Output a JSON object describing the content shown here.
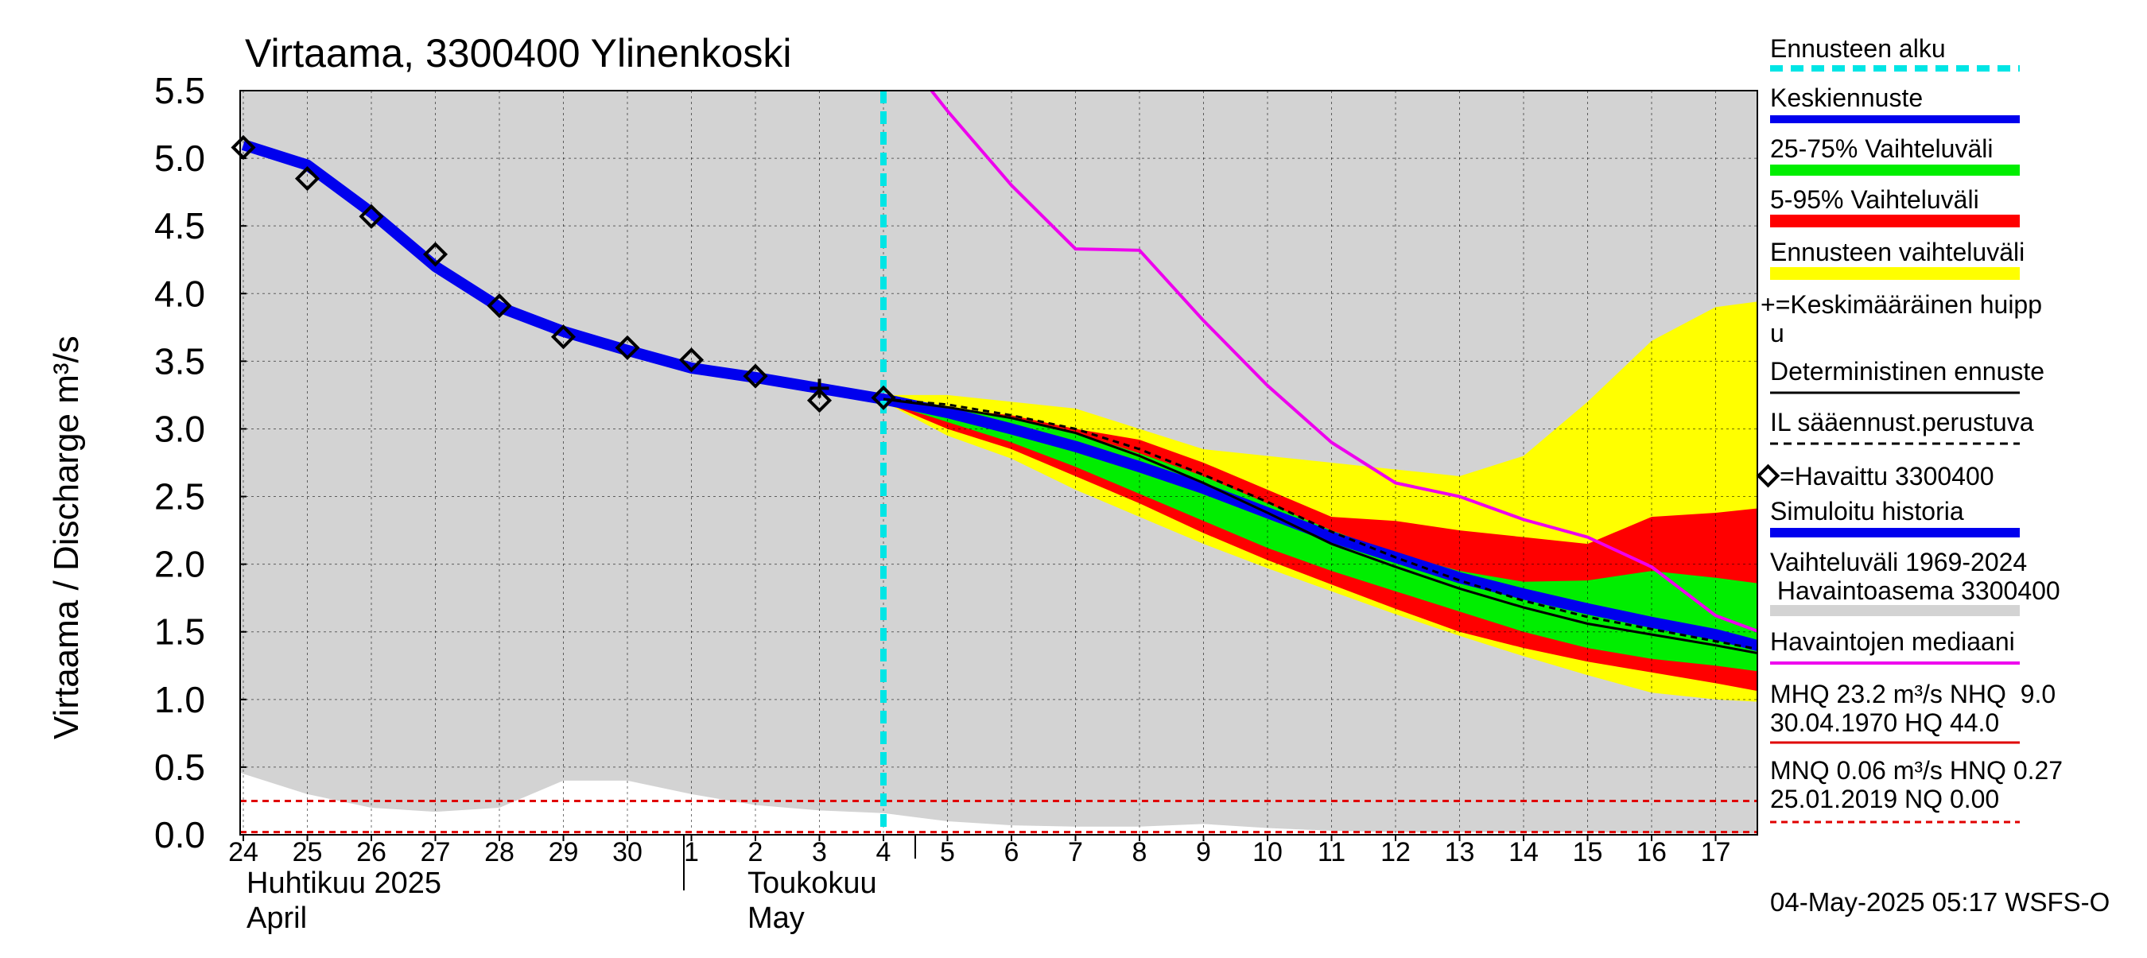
{
  "chart_data": {
    "type": "area",
    "title": "Virtaama, 3300400 Ylinenkoski",
    "ylabel": "Virtaama / Discharge    m³/s",
    "ylim": [
      0,
      5.5
    ],
    "yticks": [
      "0.0",
      "0.5",
      "1.0",
      "1.5",
      "2.0",
      "2.5",
      "3.0",
      "3.5",
      "4.0",
      "4.5",
      "5.0",
      "5.5"
    ],
    "days": [
      "24",
      "25",
      "26",
      "27",
      "28",
      "29",
      "30",
      "1",
      "2",
      "3",
      "4",
      "5",
      "6",
      "7",
      "8",
      "9",
      "10",
      "11",
      "12",
      "13",
      "14",
      "15",
      "16",
      "17"
    ],
    "month1_fi": "Huhtikuu  2025",
    "month1_en": "April",
    "month2_fi": "Toukokuu",
    "month2_en": "May",
    "forecast_start_day": 10,
    "x_range": [
      -0.2,
      23.8
    ],
    "history_band_upper": [
      [
        -0.2,
        5.5
      ],
      [
        23.8,
        5.5
      ]
    ],
    "history_band_lower": [
      [
        -0.2,
        0.5
      ],
      [
        0,
        0.45
      ],
      [
        1,
        0.3
      ],
      [
        2,
        0.2
      ],
      [
        3,
        0.17
      ],
      [
        4,
        0.2
      ],
      [
        5,
        0.4
      ],
      [
        6,
        0.4
      ],
      [
        7,
        0.3
      ],
      [
        8,
        0.22
      ],
      [
        9,
        0.18
      ],
      [
        10,
        0.16
      ],
      [
        11,
        0.1
      ],
      [
        12,
        0.07
      ],
      [
        13,
        0.06
      ],
      [
        14,
        0.06
      ],
      [
        15,
        0.08
      ],
      [
        16,
        0.05
      ],
      [
        17,
        0.03
      ],
      [
        18,
        0.02
      ],
      [
        19,
        0.02
      ],
      [
        20,
        0.02
      ],
      [
        21,
        0.02
      ],
      [
        22,
        0.01
      ],
      [
        23,
        0.01
      ],
      [
        23.8,
        0.01
      ]
    ],
    "ensemble_range": {
      "x": [
        10,
        11,
        12,
        13,
        14,
        15,
        16,
        17,
        18,
        19,
        20,
        21,
        22,
        23,
        23.8
      ],
      "upper": [
        3.25,
        3.25,
        3.2,
        3.15,
        3.0,
        2.85,
        2.8,
        2.75,
        2.7,
        2.65,
        2.8,
        3.2,
        3.65,
        3.9,
        3.95
      ],
      "lower": [
        3.2,
        2.95,
        2.78,
        2.55,
        2.35,
        2.15,
        1.97,
        1.8,
        1.63,
        1.47,
        1.32,
        1.18,
        1.05,
        1.0,
        0.98
      ]
    },
    "band_5_95": {
      "x": [
        10,
        11,
        12,
        13,
        14,
        15,
        16,
        17,
        18,
        19,
        20,
        21,
        22,
        23,
        23.8
      ],
      "upper": [
        3.22,
        3.15,
        3.1,
        3.0,
        2.92,
        2.75,
        2.55,
        2.35,
        2.32,
        2.25,
        2.2,
        2.15,
        2.35,
        2.38,
        2.42
      ],
      "lower": [
        3.2,
        3.0,
        2.85,
        2.65,
        2.45,
        2.23,
        2.03,
        1.85,
        1.67,
        1.5,
        1.38,
        1.28,
        1.2,
        1.12,
        1.05
      ]
    },
    "band_25_75": {
      "x": [
        10,
        11,
        12,
        13,
        14,
        15,
        16,
        17,
        18,
        19,
        20,
        21,
        22,
        23,
        23.8
      ],
      "upper": [
        3.22,
        3.15,
        3.08,
        2.97,
        2.82,
        2.65,
        2.45,
        2.25,
        2.08,
        1.95,
        1.87,
        1.88,
        1.95,
        1.9,
        1.85
      ],
      "lower": [
        3.2,
        3.05,
        2.9,
        2.72,
        2.52,
        2.32,
        2.12,
        1.95,
        1.8,
        1.65,
        1.5,
        1.38,
        1.3,
        1.25,
        1.2
      ]
    },
    "simulated_history": {
      "x": [
        0,
        1,
        2,
        3,
        4,
        5,
        6,
        7,
        8,
        9,
        10,
        11,
        12,
        13,
        14,
        15,
        16,
        17,
        18,
        19,
        20,
        21,
        22,
        23,
        23.8
      ],
      "y": [
        5.1,
        4.95,
        4.6,
        4.2,
        3.9,
        3.72,
        3.58,
        3.45,
        3.38,
        3.3,
        3.22,
        3.12,
        3.0,
        2.87,
        2.72,
        2.56,
        2.38,
        2.2,
        2.05,
        1.9,
        1.78,
        1.67,
        1.57,
        1.48,
        1.38
      ]
    },
    "mean_forecast": {
      "x": [
        10,
        11,
        12,
        13,
        14,
        15,
        16,
        17,
        18,
        19,
        20,
        21,
        22,
        23,
        23.8
      ],
      "y": [
        3.22,
        3.12,
        3.0,
        2.87,
        2.72,
        2.56,
        2.38,
        2.2,
        2.05,
        1.9,
        1.78,
        1.67,
        1.57,
        1.48,
        1.38
      ]
    },
    "deterministic": {
      "x": [
        10,
        11,
        12,
        13,
        14,
        15,
        16,
        17,
        18,
        19,
        20,
        21,
        22,
        23,
        23.8
      ],
      "y": [
        3.22,
        3.16,
        3.08,
        2.97,
        2.8,
        2.6,
        2.38,
        2.15,
        1.98,
        1.82,
        1.68,
        1.56,
        1.48,
        1.4,
        1.33
      ]
    },
    "il_forecast": {
      "x": [
        10,
        11,
        12,
        13,
        14,
        15,
        16,
        17,
        18,
        19,
        20,
        21,
        22,
        23,
        23.8
      ],
      "y": [
        3.22,
        3.18,
        3.1,
        3.0,
        2.85,
        2.66,
        2.46,
        2.24,
        2.05,
        1.88,
        1.73,
        1.61,
        1.52,
        1.43,
        1.36
      ]
    },
    "observed": {
      "x": [
        0,
        1,
        2,
        3,
        4,
        5,
        6,
        7,
        8,
        9,
        10
      ],
      "y": [
        5.08,
        4.85,
        4.57,
        4.29,
        3.91,
        3.68,
        3.6,
        3.51,
        3.39,
        3.21,
        3.23
      ]
    },
    "mean_peak": {
      "x": 9,
      "y": 3.3
    },
    "median": {
      "x": [
        10.75,
        11,
        12,
        13,
        14,
        15,
        16,
        17,
        18,
        19,
        20,
        21,
        22,
        23,
        23.8
      ],
      "y": [
        5.5,
        5.35,
        4.8,
        4.33,
        4.32,
        3.8,
        3.32,
        2.9,
        2.6,
        2.5,
        2.33,
        2.2,
        1.98,
        1.62,
        1.48
      ]
    },
    "nhq_line": 0.25,
    "nq_line": 0.02,
    "colors": {
      "history": "#d3d3d3",
      "ensemble": "#ffff00",
      "band_5_95": "#ff0000",
      "band_25_75": "#00ee00",
      "mean": "#0000ee",
      "forecast_start": "#00e5e5",
      "median": "#ee00ee",
      "threshold": "#e00000"
    }
  },
  "legend": {
    "items": [
      "Ennusteen alku",
      "Keskiennuste",
      "25-75% Vaihteluväli",
      "5-95% Vaihteluväli",
      "Ennusteen vaihteluväli",
      "+=Keskimääräinen huipp",
      "u",
      "Deterministinen ennuste",
      "IL sääennust.perustuva",
      "=Havaittu 3300400",
      "Simuloitu historia",
      "Vaihteluväli 1969-2024",
      " Havaintoasema 3300400",
      "Havaintojen mediaani",
      "MHQ 23.2 m³/s NHQ  9.0",
      "30.04.1970 HQ 44.0",
      "MNQ 0.06 m³/s HNQ 0.27",
      "25.01.2019 NQ 0.00"
    ]
  },
  "footer": "04-May-2025 05:17 WSFS-O"
}
